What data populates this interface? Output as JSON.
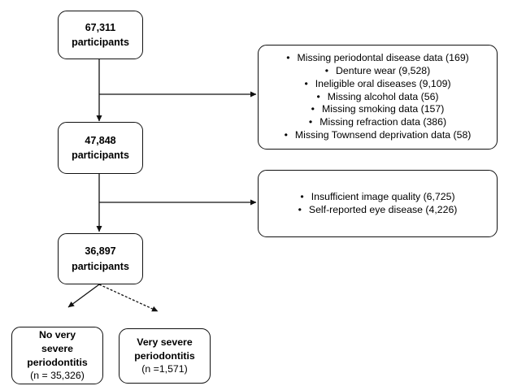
{
  "flow": {
    "step1": {
      "number": "67,311",
      "label": "participants"
    },
    "step2": {
      "number": "47,848",
      "label": "participants"
    },
    "step3": {
      "number": "36,897",
      "label": "participants"
    }
  },
  "exclusions1": {
    "items": [
      "Missing periodontal disease data (169)",
      "Denture wear (9,528)",
      "Ineligible oral diseases (9,109)",
      "Missing alcohol data (56)",
      "Missing smoking data (157)",
      "Missing refraction data (386)",
      "Missing Townsend deprivation data (58)"
    ]
  },
  "exclusions2": {
    "items": [
      "Insufficient image quality (6,725)",
      "Self-reported eye disease (4,226)"
    ]
  },
  "outcomes": {
    "left": {
      "line1": "No very",
      "line2": "severe",
      "line3": "periodontitis",
      "count": "(n = 35,326)"
    },
    "right": {
      "line1": "Very severe",
      "line2": "periodontitis",
      "count": "(n =1,571)"
    }
  }
}
